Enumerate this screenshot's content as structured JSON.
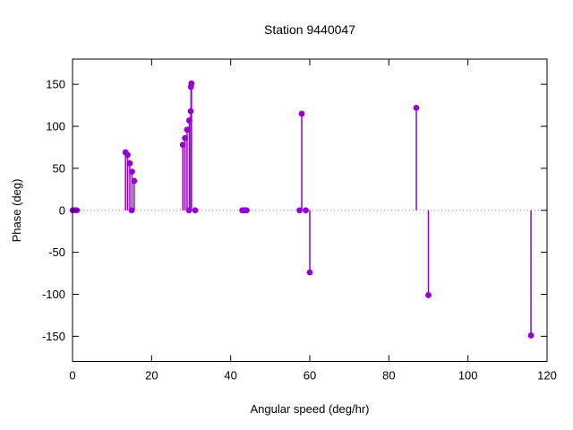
{
  "window": {
    "title": "Station 9440047"
  },
  "colors": {
    "background": "#ffffff",
    "axis": "#000000",
    "text": "#000000",
    "zero_line": "#808080",
    "marker": "#9400d3"
  },
  "chart_data": {
    "type": "stem",
    "title": "Station 9440047",
    "xlabel": "Angular speed (deg/hr)",
    "ylabel": "Phase (deg)",
    "xlim": [
      0,
      120
    ],
    "ylim": [
      -180,
      180
    ],
    "xticks": [
      0,
      20,
      40,
      60,
      80,
      100,
      120
    ],
    "yticks": [
      -150,
      -100,
      -50,
      0,
      50,
      100,
      150
    ],
    "grid": false,
    "zero_line_dotted": true,
    "legend": "none",
    "marker_color": "#9400d3",
    "points": [
      [
        0.04,
        0
      ],
      [
        0.08,
        0
      ],
      [
        0.54,
        0
      ],
      [
        1.02,
        0
      ],
      [
        1.1,
        0
      ],
      [
        13.4,
        69
      ],
      [
        13.94,
        66
      ],
      [
        14.49,
        56
      ],
      [
        14.96,
        0
      ],
      [
        15.04,
        46
      ],
      [
        15.59,
        35
      ],
      [
        27.9,
        78
      ],
      [
        28.44,
        86
      ],
      [
        28.98,
        96
      ],
      [
        29.46,
        0
      ],
      [
        29.53,
        107
      ],
      [
        29.9,
        118
      ],
      [
        29.96,
        147
      ],
      [
        30.08,
        151
      ],
      [
        31.02,
        0
      ],
      [
        42.93,
        0
      ],
      [
        43.48,
        0
      ],
      [
        44.03,
        0
      ],
      [
        57.42,
        0
      ],
      [
        57.97,
        115
      ],
      [
        58.98,
        0
      ],
      [
        60.0,
        -74
      ],
      [
        86.95,
        122
      ],
      [
        90.0,
        -101
      ],
      [
        115.94,
        -149
      ]
    ]
  }
}
